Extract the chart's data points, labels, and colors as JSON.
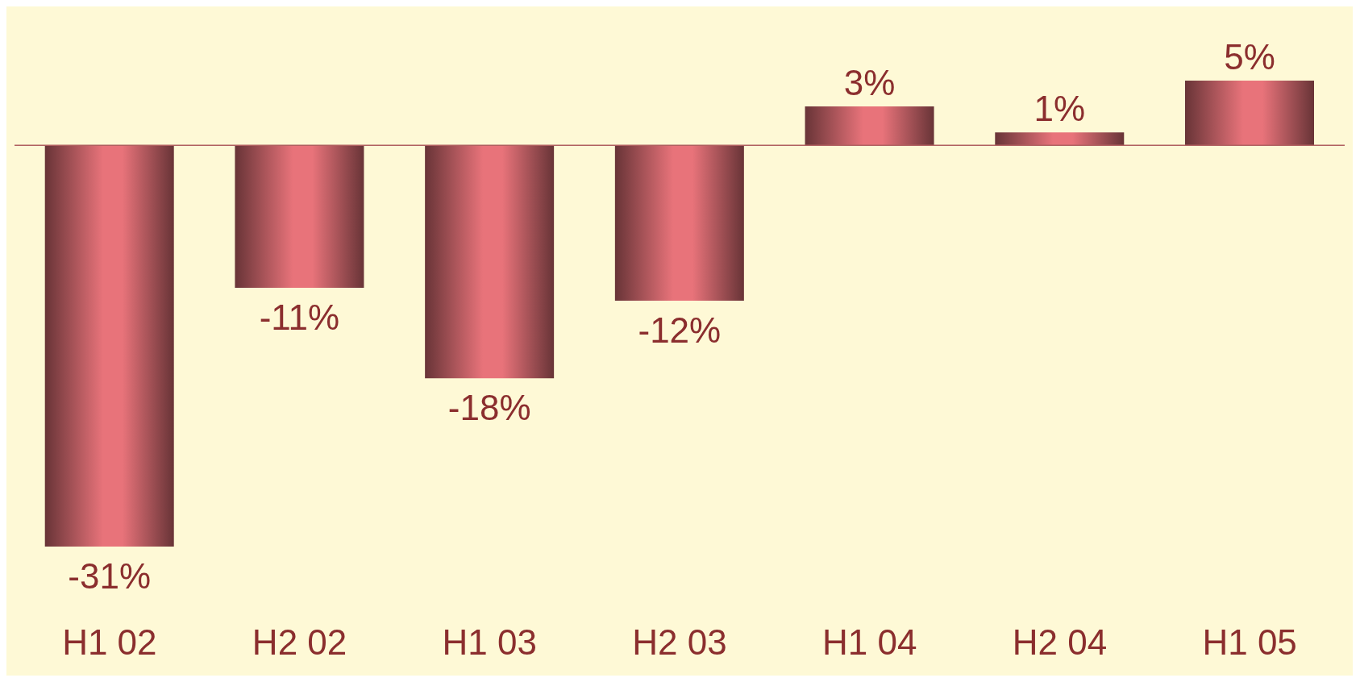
{
  "chart_data": {
    "type": "bar",
    "categories": [
      "H1 02",
      "H2 02",
      "H1 03",
      "H2 03",
      "H1 04",
      "H2 04",
      "H1 05"
    ],
    "values": [
      -31,
      -11,
      -18,
      -12,
      3,
      1,
      5
    ],
    "value_labels": [
      "-31%",
      "-11%",
      "-18%",
      "-12%",
      "3%",
      "1%",
      "5%"
    ],
    "color": "#e8737a",
    "ref_lines": [
      {
        "axis": "y",
        "value": 0,
        "color": "#b06060"
      }
    ],
    "grid": false,
    "legend": false
  }
}
